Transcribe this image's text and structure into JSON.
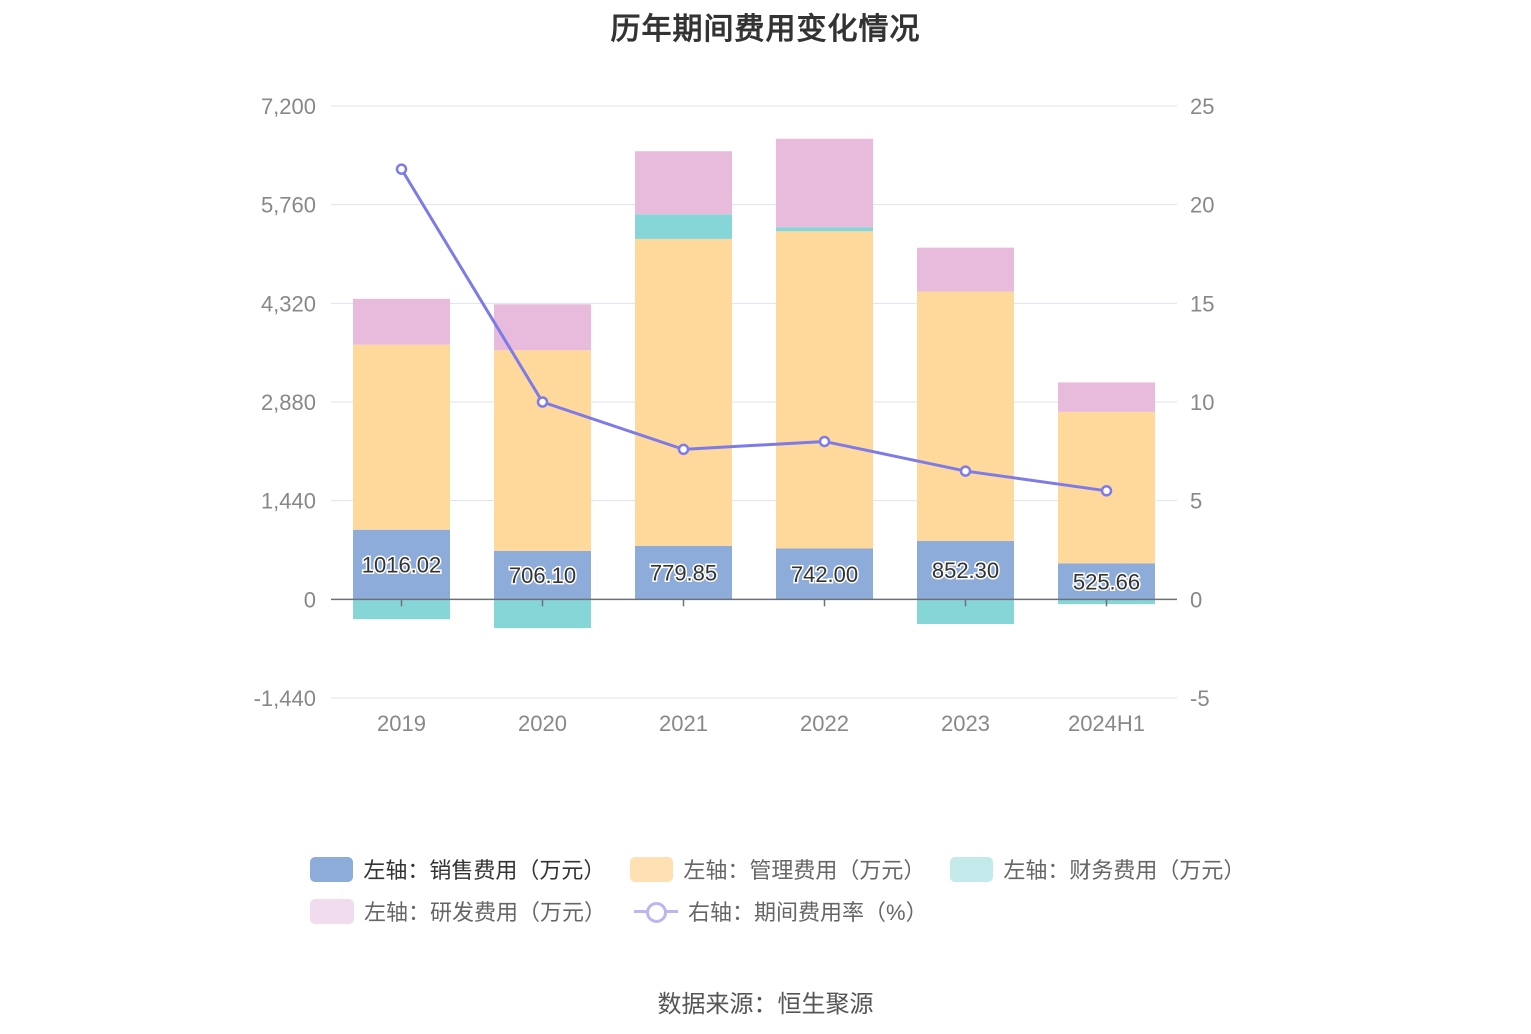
{
  "title": "历年期间费用变化情况",
  "source": "数据来源：恒生聚源",
  "legend": {
    "items": [
      {
        "label": "左轴：销售费用（万元）",
        "color": "#8eacd9",
        "kind": "bar"
      },
      {
        "label": "左轴：管理费用（万元）",
        "color": "#ffe0b2",
        "kind": "bar"
      },
      {
        "label": "左轴：财务费用（万元）",
        "color": "#c4e9ea",
        "kind": "bar"
      },
      {
        "label": "左轴：研发费用（万元）",
        "color": "#f1dcef",
        "kind": "bar"
      },
      {
        "label": "右轴：期间费用率（%）",
        "color": "#8781e8",
        "kind": "line"
      }
    ]
  },
  "chart_data": {
    "type": "bar",
    "title": "历年期间费用变化情况",
    "categories": [
      "2019",
      "2020",
      "2021",
      "2022",
      "2023",
      "2024H1"
    ],
    "left_axis": {
      "range": [
        -1440,
        7200
      ],
      "ticks": [
        -1440,
        0,
        1440,
        2880,
        4320,
        5760,
        7200
      ],
      "tick_labels": [
        "-1,440",
        "0",
        "1,440",
        "2,880",
        "4,320",
        "5,760",
        "7,200"
      ]
    },
    "right_axis": {
      "range": [
        -5,
        25
      ],
      "ticks": [
        -5,
        0,
        5,
        10,
        15,
        20,
        25
      ],
      "tick_labels": [
        "-5",
        "0",
        "5",
        "10",
        "15",
        "20",
        "25"
      ]
    },
    "grid": true,
    "legend_position": "bottom",
    "series": [
      {
        "name": "左轴：销售费用（万元）",
        "type": "bar",
        "axis": "left",
        "color": "#8eacd9",
        "values": [
          1016.02,
          706.1,
          779.85,
          742.0,
          852.3,
          525.66
        ],
        "data_labels": [
          "1016.02",
          "706.10",
          "779.85",
          "742.00",
          "852.30",
          "525.66"
        ]
      },
      {
        "name": "左轴：管理费用（万元）",
        "type": "bar",
        "axis": "left",
        "color": "#ffd89c",
        "values": [
          2700,
          2930,
          4480,
          4630,
          3640,
          2210
        ]
      },
      {
        "name": "左轴：财务费用（万元）",
        "type": "bar",
        "axis": "left",
        "color": "#86d6d8",
        "values": [
          -290,
          -420,
          360,
          60,
          -360,
          -70
        ]
      },
      {
        "name": "左轴：研发费用（万元）",
        "type": "bar",
        "axis": "left",
        "color": "#e8bbdc",
        "values": [
          670,
          670,
          920,
          1290,
          640,
          430
        ]
      },
      {
        "name": "右轴：期间费用率（%）",
        "type": "line",
        "axis": "right",
        "color": "#7d7be8",
        "values": [
          21.8,
          10.0,
          7.6,
          8.0,
          6.5,
          5.5
        ]
      }
    ]
  }
}
